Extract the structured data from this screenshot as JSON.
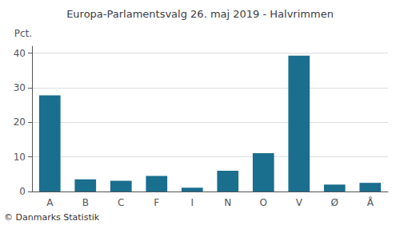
{
  "chart_data": {
    "type": "bar",
    "title": "Europa-Parlamentsvalg 26. maj 2019 - Halvrimmen",
    "ylabel": "Pct.",
    "footer": "© Danmarks Statistik",
    "categories": [
      "A",
      "B",
      "C",
      "F",
      "I",
      "N",
      "O",
      "V",
      "Ø",
      "Å"
    ],
    "values": [
      27.8,
      3.5,
      3.1,
      4.5,
      1.1,
      6.0,
      11.1,
      39.3,
      2.0,
      2.5
    ],
    "color": "#1a6e8e",
    "ylim": [
      0,
      42
    ],
    "yticks": [
      0,
      10,
      20,
      30,
      40
    ],
    "grid": true
  }
}
